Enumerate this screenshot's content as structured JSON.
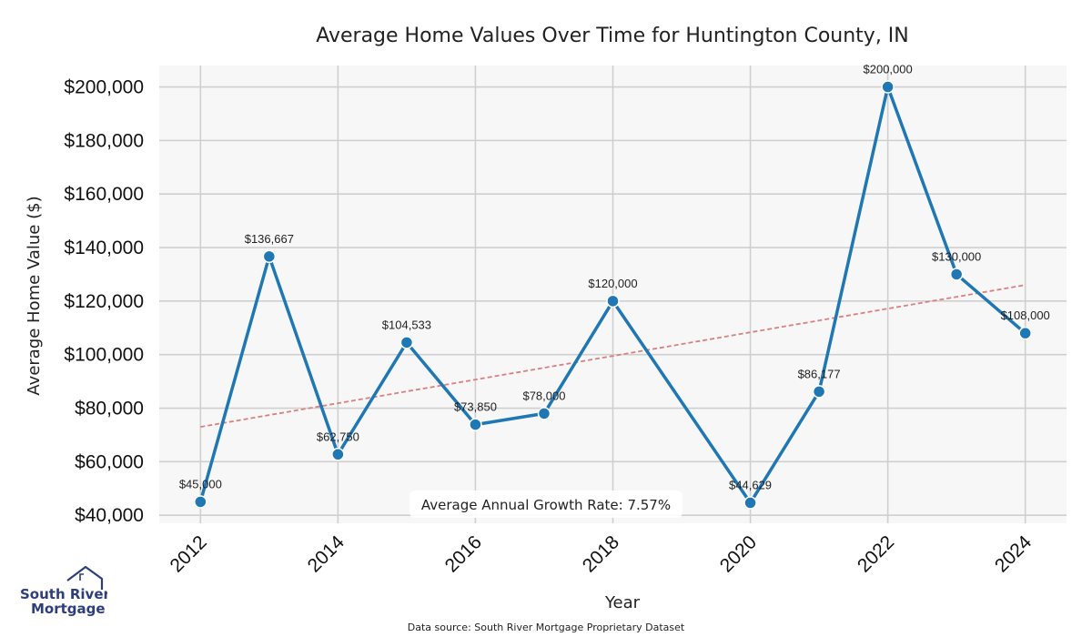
{
  "chart_data": {
    "type": "line",
    "title": "Average Home Values Over Time for Huntington County, IN",
    "xlabel": "Year",
    "ylabel": "Average Home Value ($)",
    "x": [
      2012,
      2013,
      2014,
      2015,
      2016,
      2017,
      2018,
      2020,
      2021,
      2022,
      2023,
      2024
    ],
    "series": [
      {
        "values": [
          45000,
          136667,
          62750,
          104533,
          73850,
          78000,
          120000,
          44629,
          86177,
          200000,
          130000,
          108000
        ],
        "data_labels": [
          "$45,000",
          "$136,667",
          "$62,750",
          "$104,533",
          "$73,850",
          "$78,000",
          "$120,000",
          "$44,629",
          "$86,177",
          "$200,000",
          "$130,000",
          "$108,000"
        ],
        "color": "#1f77b4"
      }
    ],
    "trendline": {
      "start": [
        2012,
        73000
      ],
      "end": [
        2024,
        126000
      ],
      "color": "#d98080",
      "style": "dashed"
    },
    "xticks": [
      2012,
      2014,
      2016,
      2018,
      2020,
      2022,
      2024
    ],
    "xtick_labels": [
      "2012",
      "2014",
      "2016",
      "2018",
      "2020",
      "2022",
      "2024"
    ],
    "yticks": [
      40000,
      60000,
      80000,
      100000,
      120000,
      140000,
      160000,
      180000,
      200000
    ],
    "ytick_labels": [
      "$40,000",
      "$60,000",
      "$80,000",
      "$100,000",
      "$120,000",
      "$140,000",
      "$160,000",
      "$180,000",
      "$200,000"
    ],
    "xlim": [
      2011.4,
      2024.6
    ],
    "ylim": [
      37000,
      208000
    ],
    "grid": true,
    "annotation": "Average Annual Growth Rate: 7.57%",
    "plot_background": "#f7f7f7"
  },
  "footer": {
    "source": "Data source: South River Mortgage Proprietary Dataset"
  },
  "logo": {
    "line1": "South River",
    "line2": "Mortgage"
  }
}
